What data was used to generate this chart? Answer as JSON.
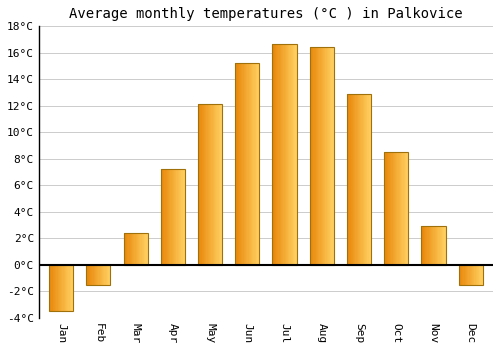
{
  "title": "Average monthly temperatures (°C ) in Palkovice",
  "months": [
    "Jan",
    "Feb",
    "Mar",
    "Apr",
    "May",
    "Jun",
    "Jul",
    "Aug",
    "Sep",
    "Oct",
    "Nov",
    "Dec"
  ],
  "values": [
    -3.5,
    -1.5,
    2.4,
    7.2,
    12.1,
    15.2,
    16.7,
    16.4,
    12.9,
    8.5,
    2.9,
    -1.5
  ],
  "bar_color_left": "#E8870A",
  "bar_color_right": "#FFD060",
  "bar_edge_color": "#A0700A",
  "background_color": "#FFFFFF",
  "grid_color": "#CCCCCC",
  "ylim": [
    -4,
    18
  ],
  "yticks": [
    -4,
    -2,
    0,
    2,
    4,
    6,
    8,
    10,
    12,
    14,
    16,
    18
  ],
  "title_fontsize": 10,
  "tick_fontsize": 8,
  "figsize": [
    5.0,
    3.5
  ],
  "dpi": 100
}
